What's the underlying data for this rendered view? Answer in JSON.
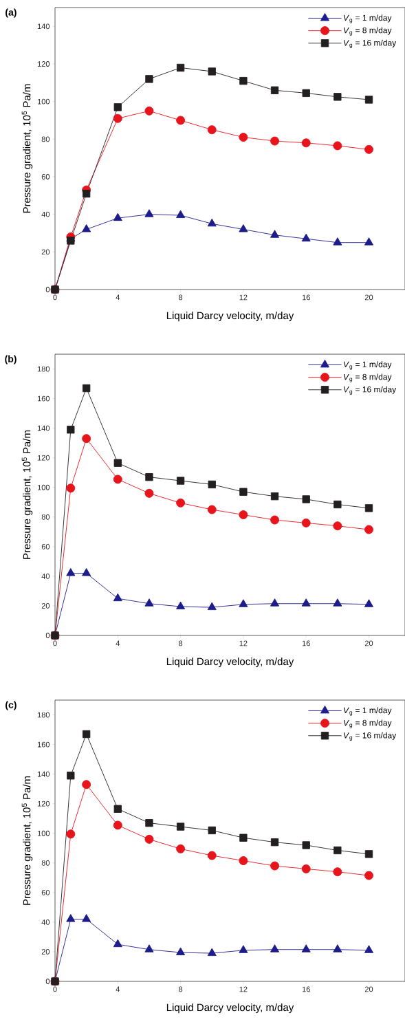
{
  "chart_data": [
    {
      "type": "line",
      "title": "(a)",
      "xlabel": "Liquid Darcy velocity, m/day",
      "ylabel": "Pressure gradient, 10$^{5}$ Pa/m",
      "x": [
        0,
        1,
        2,
        4,
        6,
        8,
        10,
        12,
        14,
        16,
        18,
        20
      ],
      "xlim": [
        0,
        22.3
      ],
      "ylim": [
        0,
        150
      ],
      "xticks": [
        0,
        4,
        8,
        12,
        16,
        20
      ],
      "yticks": [
        0,
        20,
        40,
        60,
        80,
        100,
        120,
        140
      ],
      "legend": "top right",
      "line_style": "solid",
      "series": [
        {
          "name": "*V*$_{g}$ = 1 m/day",
          "color": "#1c1c8a",
          "marker": "triangle",
          "values": [
            0,
            27,
            32,
            38,
            40,
            39.5,
            35,
            32,
            29,
            27,
            25,
            25
          ]
        },
        {
          "name": "*V*$_{g}$ = 8 m/day",
          "color": "#e8141c",
          "marker": "circle",
          "values": [
            0,
            28,
            53,
            91,
            95,
            90,
            85,
            81,
            79,
            78,
            76.5,
            74.5
          ]
        },
        {
          "name": "*V*$_{g}$ = 16 m/day",
          "color": "#231f20",
          "marker": "square",
          "values": [
            0,
            26,
            51,
            97,
            112,
            118,
            116,
            111,
            106,
            104.5,
            102.5,
            101
          ]
        }
      ]
    },
    {
      "type": "line",
      "title": "(b)",
      "xlabel": "Liquid Darcy velocity, m/day",
      "ylabel": "Pressure gradient, 10$^{5}$ Pa/m",
      "x": [
        0,
        1,
        2,
        4,
        6,
        8,
        10,
        12,
        14,
        16,
        18,
        20
      ],
      "xlim": [
        0,
        22.3
      ],
      "ylim": [
        0,
        190
      ],
      "xticks": [
        0,
        4,
        8,
        12,
        16,
        20
      ],
      "yticks": [
        0,
        20,
        40,
        60,
        80,
        100,
        120,
        140,
        160,
        180
      ],
      "legend": "top right",
      "line_style": "solid",
      "series": [
        {
          "name": "*V*$_{g}$ = 1 m/day",
          "color": "#1c1c8a",
          "marker": "triangle",
          "values": [
            0,
            42,
            42,
            25,
            21.5,
            19.5,
            19,
            21,
            21.5,
            21.5,
            21.5,
            21
          ]
        },
        {
          "name": "*V*$_{g}$ = 8 m/day",
          "color": "#e8141c",
          "marker": "circle",
          "values": [
            0,
            99.5,
            133,
            105.5,
            96,
            89.5,
            85,
            81.5,
            78,
            76,
            74,
            71.5
          ]
        },
        {
          "name": "*V*$_{g}$ = 16 m/day",
          "color": "#231f20",
          "marker": "square",
          "values": [
            0,
            139,
            167,
            116.5,
            107,
            104.5,
            102,
            97,
            94,
            92,
            88.5,
            86
          ]
        }
      ]
    },
    {
      "type": "line",
      "title": "(c)",
      "xlabel": "Liquid Darcy velocity, m/day",
      "ylabel": "Pressure gradient, 10$^{5}$ Pa/m",
      "x": [
        0,
        1,
        2,
        4,
        6,
        8,
        10,
        12,
        14,
        16,
        18,
        20
      ],
      "xlim": [
        0,
        22.3
      ],
      "ylim": [
        0,
        190
      ],
      "xticks": [
        0,
        4,
        8,
        12,
        16,
        20
      ],
      "yticks": [
        0,
        20,
        40,
        60,
        80,
        100,
        120,
        140,
        160,
        180
      ],
      "legend": "top right",
      "line_style": "solid",
      "series": [
        {
          "name": "*V*$_{g}$ = 1 m/day",
          "color": "#1c1c8a",
          "marker": "triangle",
          "values": [
            0,
            42,
            42,
            25,
            21.5,
            19.5,
            19,
            21,
            21.5,
            21.5,
            21.5,
            21
          ]
        },
        {
          "name": "*V*$_{g}$ = 8 m/day",
          "color": "#e8141c",
          "marker": "circle",
          "values": [
            0,
            99.5,
            133,
            105.5,
            96,
            89.5,
            85,
            81.5,
            78,
            76,
            74,
            71.5
          ]
        },
        {
          "name": "*V*$_{g}$ = 16 m/day",
          "color": "#231f20",
          "marker": "square",
          "values": [
            0,
            139,
            167,
            116.5,
            107,
            104.5,
            102,
            97,
            94,
            92,
            88.5,
            86
          ]
        }
      ]
    }
  ]
}
